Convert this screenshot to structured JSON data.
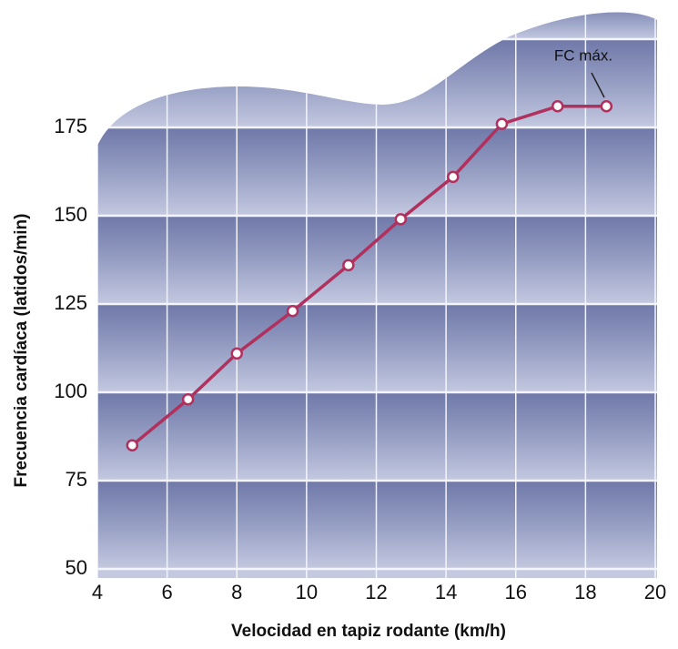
{
  "chart_data": {
    "type": "line",
    "xlabel": "Velocidad en tapiz rodante (km/h)",
    "ylabel": "Frecuencia cardíaca (latidos/min)",
    "x": [
      5.0,
      6.6,
      8.0,
      9.6,
      11.2,
      12.7,
      14.2,
      15.6,
      17.2,
      18.6
    ],
    "values": [
      85,
      98,
      111,
      123,
      136,
      149,
      161,
      176,
      181,
      181
    ],
    "color": "#b0305e",
    "xlim": [
      4,
      20
    ],
    "xticks": [
      4,
      6,
      8,
      10,
      12,
      14,
      16,
      18,
      20
    ],
    "ylim": [
      50,
      200
    ],
    "yticks": [
      50,
      75,
      100,
      125,
      150,
      175
    ],
    "grid": true,
    "annotation": "FC máx."
  }
}
